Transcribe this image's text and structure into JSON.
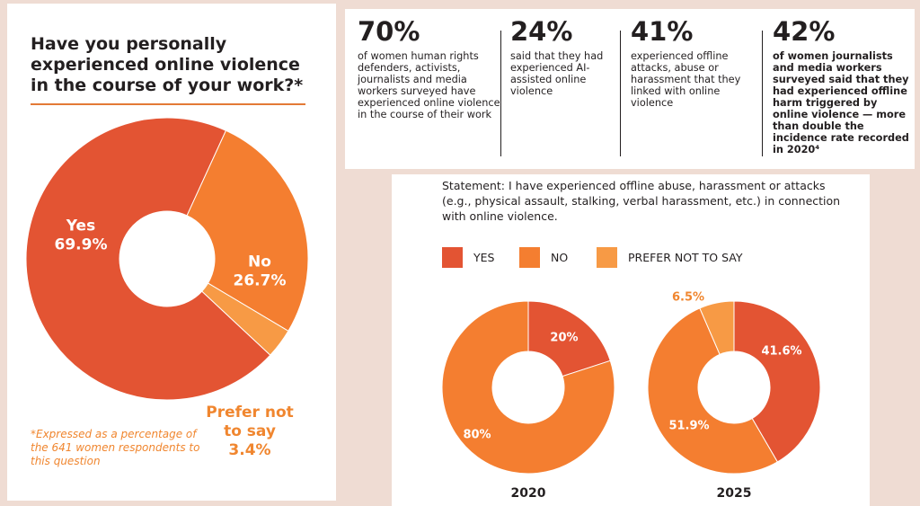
{
  "colors": {
    "yes": "#e35433",
    "no": "#f47e30",
    "prefer": "#f79a45",
    "accent_text": "#f0862f"
  },
  "left": {
    "title": "Have you personally experienced online violence in the course of your work?*",
    "footnote": "*Expressed as a percentage of the 641 women respondents to this question"
  },
  "stats": [
    {
      "value": "70%",
      "text": "of women human rights defenders, activists, journalists and media workers surveyed have experienced online violence in the course of their work"
    },
    {
      "value": "24%",
      "text": "said that they had experienced AI-assisted online violence"
    },
    {
      "value": "41%",
      "text": "experienced offline attacks, abuse or harassment that they linked with online violence"
    },
    {
      "value": "42%",
      "text": "of women journalists and media workers surveyed said that they had experienced offline harm triggered by online violence — more than double the incidence rate recorded in 2020⁴"
    }
  ],
  "right": {
    "statement": "Statement: I have experienced offline abuse, harassment or attacks (e.g., physical assault, stalking, verbal harassment, etc.) in connection with online violence.",
    "legend": [
      "YES",
      "NO",
      "PREFER NOT TO SAY"
    ]
  },
  "chart_data": [
    {
      "type": "pie",
      "title": "Have you personally experienced online violence in the course of your work?*",
      "slices": [
        {
          "label": "Yes",
          "value": 69.9,
          "label_text": "Yes\n69.9%"
        },
        {
          "label": "No",
          "value": 26.7,
          "label_text": "No\n26.7%"
        },
        {
          "label": "Prefer not to say",
          "value": 3.4,
          "label_text": "Prefer not\nto say\n3.4%"
        }
      ]
    },
    {
      "type": "pie",
      "title": "2020",
      "slices": [
        {
          "label": "YES",
          "value": 20,
          "label_text": "20%"
        },
        {
          "label": "NO",
          "value": 80,
          "label_text": "80%"
        }
      ]
    },
    {
      "type": "pie",
      "title": "2025",
      "slices": [
        {
          "label": "YES",
          "value": 41.6,
          "label_text": "41.6%"
        },
        {
          "label": "NO",
          "value": 51.9,
          "label_text": "51.9%"
        },
        {
          "label": "PREFER NOT TO SAY",
          "value": 6.5,
          "label_text": "6.5%"
        }
      ]
    }
  ]
}
